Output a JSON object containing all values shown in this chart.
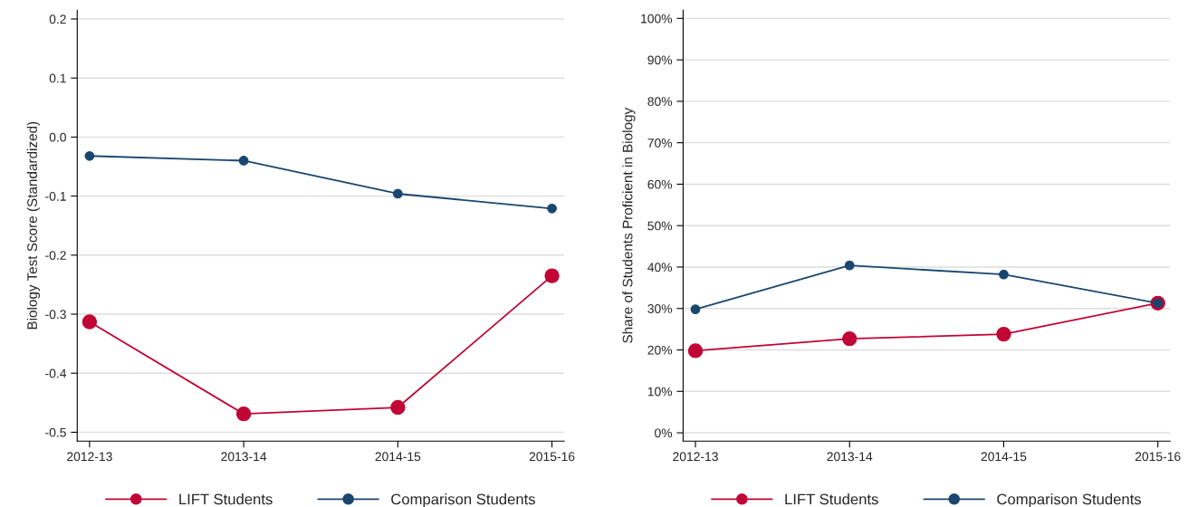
{
  "chart_data": [
    {
      "type": "line",
      "ylabel": "Biology Test Score (Standardized)",
      "categories": [
        "2012-13",
        "2013-14",
        "2014-15",
        "2015-16"
      ],
      "series": [
        {
          "name": "LIFT Students",
          "color": "#c10534",
          "values": [
            -0.313,
            -0.469,
            -0.458,
            -0.235
          ]
        },
        {
          "name": "Comparison Students",
          "color": "#1a476f",
          "values": [
            -0.032,
            -0.04,
            -0.096,
            -0.121
          ]
        }
      ],
      "ylim": [
        -0.515,
        0.215
      ],
      "yticks": [
        {
          "value": -0.5,
          "label": "-0.5"
        },
        {
          "value": -0.4,
          "label": "-0.4"
        },
        {
          "value": -0.3,
          "label": "-0.3"
        },
        {
          "value": -0.2,
          "label": "-0.2"
        },
        {
          "value": -0.1,
          "label": "-0.1"
        },
        {
          "value": 0,
          "label": "0.0"
        },
        0.1,
        0.2
      ],
      "grid": "y",
      "legend": "bottom",
      "marker": "circle",
      "line_style": "solid"
    },
    {
      "type": "line",
      "ylabel": "Share of Students Proficient in Biology",
      "categories": [
        "2012-13",
        "2013-14",
        "2014-15",
        "2015-16"
      ],
      "series": [
        {
          "name": "LIFT Students",
          "color": "#c10534",
          "values": [
            19.8,
            22.7,
            23.8,
            31.3
          ]
        },
        {
          "name": "Comparison Students",
          "color": "#1a476f",
          "values": [
            29.8,
            40.4,
            38.2,
            31.3
          ]
        }
      ],
      "ylim": [
        -2,
        102
      ],
      "yticks": [
        {
          "value": 0,
          "label": "0%"
        },
        {
          "value": 10,
          "label": "10%"
        },
        {
          "value": 20,
          "label": "20%"
        },
        {
          "value": 30,
          "label": "30%"
        },
        {
          "value": 40,
          "label": "40%"
        },
        {
          "value": 50,
          "label": "50%"
        },
        {
          "value": 60,
          "label": "60%"
        },
        {
          "value": 70,
          "label": "70%"
        },
        {
          "value": 80,
          "label": "80%"
        },
        {
          "value": 90,
          "label": "90%"
        },
        {
          "value": 100,
          "label": "100%"
        }
      ],
      "grid": "y",
      "legend": "bottom",
      "marker": "circle",
      "line_style": "solid"
    }
  ]
}
